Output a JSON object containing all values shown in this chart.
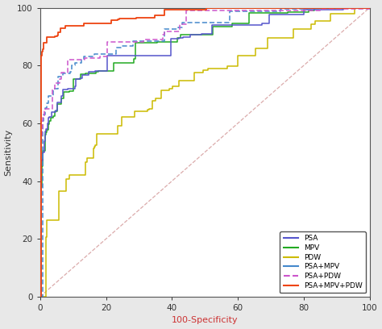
{
  "title": "",
  "xlabel": "100-Specificity",
  "ylabel": "Sensitivity",
  "xlim": [
    0,
    100
  ],
  "ylim": [
    0,
    100
  ],
  "xticks": [
    0,
    20,
    40,
    60,
    80,
    100
  ],
  "yticks": [
    0,
    20,
    40,
    60,
    80,
    100
  ],
  "legend_labels": [
    "PSA",
    "MPV",
    "PDW",
    "PSA+MPV",
    "PSA+PDW",
    "PSA+MPV+PDW"
  ],
  "colors": {
    "PSA": "#5555cc",
    "MPV": "#22aa22",
    "PDW": "#ccbb00",
    "PSA+MPV": "#4488cc",
    "PSA+PDW": "#cc55cc",
    "PSA+MPV+PDW": "#ee4411",
    "reference": "#cc8888"
  },
  "background_color": "#ffffff",
  "fig_bg": "#e8e8e8"
}
